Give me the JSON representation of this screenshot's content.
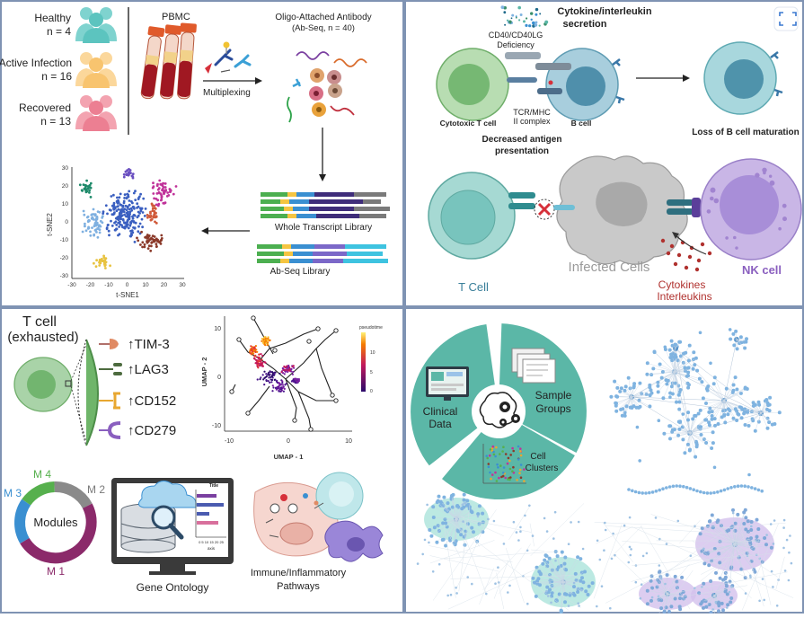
{
  "colors": {
    "panel_border": "#7f93b3",
    "teal": "#5bb7a7",
    "cell_green": "#a9d3a8",
    "cell_blue": "#9cc7d8",
    "nk_purple": "#b39bd8",
    "infected_grey": "#c8c8c8",
    "node_blue": "#7fb3e0",
    "module_green": "#56b04d",
    "module_blue": "#3a8fd1",
    "module_grey": "#8a8a8a",
    "module_purple": "#8b2a6a"
  },
  "panel_tl": {
    "cohort": {
      "healthy_label": "Healthy",
      "healthy_n": "n = 4",
      "active_label": "Active Infection",
      "active_n": "n = 16",
      "recovered_label": "Recovered",
      "recovered_n": "n = 13"
    },
    "pbmc": "PBMC",
    "multiplexing": "Multiplexing",
    "antibody_title_1": "Oligo-Attached Antibody",
    "antibody_title_2": "(Ab-Seq, n = 40)",
    "wt_library": "Whole Transcript Library",
    "abseq_library": "Ab-Seq Library",
    "tsne_xlabel": "t-SNE1",
    "tsne_ylabel": "t-SNE2",
    "tsne_xticks": [
      "-30",
      "-20",
      "-10",
      "0",
      "10",
      "20",
      "30"
    ],
    "tsne_yticks": [
      "30",
      "20",
      "10",
      "0",
      "-10",
      "-20",
      "-30"
    ]
  },
  "panel_tr": {
    "cytokine_1": "Cytokine/interleukin",
    "cytokine_2": "secretion",
    "cd40_1": "CD40/CD40LG",
    "cd40_2": "Deficiency",
    "tcr_1": "TCR/MHC",
    "tcr_2": "II complex",
    "cytotoxic": "Cytotoxic T cell",
    "bcell": "B cell",
    "decreased_1": "Decreased antigen",
    "decreased_2": "presentation",
    "loss": "Loss of B cell maturation",
    "tcell": "T Cell",
    "infected": "Infected Cells",
    "cytokines": "Cytokines",
    "interleukins": "Interleukins",
    "nkcell": "NK cell"
  },
  "panel_bl": {
    "tcell_1": "T cell",
    "tcell_2": "(exhausted)",
    "markers": [
      "TIM-3",
      "LAG3",
      "CD152",
      "CD279"
    ],
    "umap_xlabel": "UMAP - 1",
    "umap_ylabel": "UMAP - 2",
    "umap_xticks": [
      "-10",
      "0",
      "10"
    ],
    "umap_yticks": [
      "10",
      "0",
      "-10"
    ],
    "pseudotime": "pseudotime",
    "pseudotime_ticks": [
      "10",
      "5",
      "0"
    ],
    "modules_center": "Modules",
    "modules": [
      "M 4",
      "M 3",
      "M 2",
      "M 1"
    ],
    "mini_title": "Title",
    "mini_axis": "axis",
    "mini_ticks": "0  5  10 15 20 25",
    "gene_ontology": "Gene Ontology",
    "immune_1": "Immune/Inflammatory",
    "immune_2": "Pathways"
  },
  "panel_br": {
    "clinical_1": "Clinical",
    "clinical_2": "Data",
    "sample_1": "Sample",
    "sample_2": "Groups",
    "cell_1": "Cell",
    "cell_2": "Clusters"
  }
}
